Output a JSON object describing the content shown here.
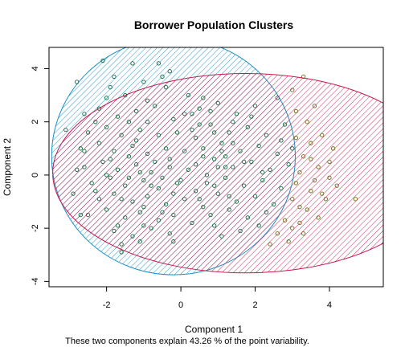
{
  "chart_data": {
    "type": "scatter",
    "title": "Borrower Population Clusters",
    "xlabel": "Component 1",
    "ylabel": "Component 2",
    "caption": "These two components explain 43.26 % of the point variability.",
    "xlim": [
      -3.55,
      5.45
    ],
    "ylim": [
      -4.2,
      4.8
    ],
    "x_ticks": [
      -2,
      0,
      2,
      4
    ],
    "y_ticks": [
      -4,
      -2,
      0,
      2,
      4
    ],
    "grid": false,
    "clusters": [
      {
        "ellipse": {
          "cx": -0.2,
          "cy": 0.7,
          "rx": 3.28,
          "ry": 4.45,
          "rotation_deg": 0
        },
        "fill_color": "#1a8fc8",
        "hatch_angle_deg": 45,
        "points": [
          [
            -2.8,
            3.5
          ],
          [
            -2.1,
            4.3
          ],
          [
            -1.3,
            4.2
          ],
          [
            -0.6,
            4.2
          ],
          [
            -1.8,
            3.7
          ],
          [
            -1.0,
            3.5
          ],
          [
            -0.4,
            3.3
          ],
          [
            -2.0,
            2.9
          ],
          [
            -1.5,
            3.0
          ],
          [
            -0.9,
            2.8
          ],
          [
            -2.6,
            2.3
          ],
          [
            -2.2,
            2.5
          ],
          [
            -1.7,
            2.2
          ],
          [
            -1.2,
            2.4
          ],
          [
            -0.7,
            2.6
          ],
          [
            -0.2,
            2.1
          ],
          [
            0.3,
            2.3
          ],
          [
            -3.1,
            1.7
          ],
          [
            -2.5,
            1.6
          ],
          [
            -2.0,
            1.8
          ],
          [
            -1.6,
            1.5
          ],
          [
            -1.1,
            1.7
          ],
          [
            -0.6,
            1.5
          ],
          [
            -0.1,
            1.6
          ],
          [
            0.4,
            1.4
          ],
          [
            0.9,
            1.6
          ],
          [
            -2.7,
            1.0
          ],
          [
            -2.2,
            1.2
          ],
          [
            -1.8,
            0.9
          ],
          [
            -1.3,
            1.1
          ],
          [
            -0.9,
            0.8
          ],
          [
            -0.4,
            1.0
          ],
          [
            0.1,
            0.9
          ],
          [
            0.6,
            0.7
          ],
          [
            1.1,
            0.9
          ],
          [
            -2.6,
            0.3
          ],
          [
            -2.1,
            0.5
          ],
          [
            -1.7,
            0.2
          ],
          [
            -1.2,
            0.4
          ],
          [
            -0.8,
            0.1
          ],
          [
            -0.3,
            0.3
          ],
          [
            0.2,
            0.2
          ],
          [
            0.7,
            0.0
          ],
          [
            1.2,
            0.3
          ],
          [
            -2.4,
            -0.3
          ],
          [
            -1.9,
            -0.1
          ],
          [
            -1.5,
            -0.4
          ],
          [
            -1.0,
            -0.2
          ],
          [
            -0.6,
            -0.5
          ],
          [
            -0.1,
            -0.3
          ],
          [
            0.4,
            -0.6
          ],
          [
            0.9,
            -0.4
          ],
          [
            -2.2,
            -0.9
          ],
          [
            -1.8,
            -0.7
          ],
          [
            -1.3,
            -1.0
          ],
          [
            -0.9,
            -0.8
          ],
          [
            -0.4,
            -1.1
          ],
          [
            0.1,
            -0.9
          ],
          [
            0.6,
            -1.2
          ],
          [
            -2.5,
            -1.5
          ],
          [
            -2.0,
            -1.3
          ],
          [
            -1.5,
            -1.6
          ],
          [
            -1.1,
            -1.4
          ],
          [
            -0.6,
            -1.7
          ],
          [
            -0.2,
            -1.5
          ],
          [
            0.3,
            -1.8
          ],
          [
            -1.8,
            -2.1
          ],
          [
            -1.3,
            -2.3
          ],
          [
            -0.8,
            -2.0
          ],
          [
            -0.3,
            -2.2
          ],
          [
            -1.6,
            -2.6
          ],
          [
            -1.1,
            -2.5
          ],
          [
            -1.6,
            -2.9
          ],
          [
            -2.7,
            -1.5
          ],
          [
            -2.9,
            -0.7
          ],
          [
            -2.8,
            0.2
          ],
          [
            0.5,
            1.9
          ],
          [
            0.8,
            2.4
          ],
          [
            0.2,
            3.0
          ],
          [
            -0.5,
            3.7
          ],
          [
            -1.4,
            0.7
          ],
          [
            -0.7,
            0.5
          ],
          [
            -1.9,
            0.6
          ],
          [
            -1.6,
            -0.9
          ],
          [
            -1.0,
            -1.2
          ],
          [
            -0.2,
            -0.7
          ],
          [
            -0.5,
            -0.1
          ],
          [
            -1.2,
            1.3
          ],
          [
            -2.3,
            -0.6
          ],
          [
            -2.0,
            0.0
          ],
          [
            -1.4,
            -0.1
          ],
          [
            -0.8,
            -0.4
          ],
          [
            -0.3,
            0.6
          ],
          [
            0.0,
            -0.2
          ],
          [
            -1.7,
            -1.9
          ],
          [
            -1.0,
            -1.9
          ],
          [
            -0.5,
            -1.4
          ],
          [
            1.4,
            1.2
          ],
          [
            1.7,
            0.5
          ],
          [
            -0.2,
            -2.5
          ],
          [
            -0.9,
            2.0
          ],
          [
            -1.4,
            2.0
          ],
          [
            -2.3,
            2.0
          ],
          [
            -1.9,
            3.3
          ],
          [
            -0.3,
            3.9
          ],
          [
            0.6,
            2.9
          ],
          [
            1.0,
            0.3
          ],
          [
            1.3,
            -0.8
          ],
          [
            -2.6,
            0.9
          ],
          [
            -1.1,
            0.1
          ]
        ]
      },
      {
        "ellipse": {
          "cx": 1.75,
          "cy": 0.07,
          "rx": 5.2,
          "ry": 3.75,
          "rotation_deg": 0
        },
        "fill_color": "#c8174b",
        "hatch_angle_deg": 45,
        "points": [
          [
            0.1,
            2.3
          ],
          [
            0.5,
            2.5
          ],
          [
            1.0,
            2.7
          ],
          [
            1.5,
            2.3
          ],
          [
            2.0,
            2.6
          ],
          [
            2.6,
            2.9
          ],
          [
            3.0,
            3.2
          ],
          [
            0.3,
            1.7
          ],
          [
            0.8,
            1.9
          ],
          [
            1.3,
            1.6
          ],
          [
            1.8,
            1.8
          ],
          [
            2.3,
            1.5
          ],
          [
            2.8,
            1.9
          ],
          [
            3.1,
            1.4
          ],
          [
            0.6,
            1.0
          ],
          [
            1.1,
            1.2
          ],
          [
            1.6,
            0.9
          ],
          [
            2.1,
            1.1
          ],
          [
            2.6,
            0.8
          ],
          [
            3.0,
            1.0
          ],
          [
            0.4,
            0.4
          ],
          [
            0.9,
            0.6
          ],
          [
            1.4,
            0.3
          ],
          [
            1.9,
            0.5
          ],
          [
            2.4,
            0.2
          ],
          [
            2.9,
            0.4
          ],
          [
            3.2,
            0.1
          ],
          [
            0.7,
            -0.3
          ],
          [
            1.2,
            -0.1
          ],
          [
            1.7,
            -0.4
          ],
          [
            2.2,
            -0.2
          ],
          [
            2.7,
            -0.5
          ],
          [
            3.1,
            -0.3
          ],
          [
            0.5,
            -0.9
          ],
          [
            1.0,
            -0.7
          ],
          [
            1.5,
            -1.0
          ],
          [
            2.0,
            -0.8
          ],
          [
            2.5,
            -1.1
          ],
          [
            3.0,
            -0.9
          ],
          [
            0.8,
            -1.5
          ],
          [
            1.3,
            -1.3
          ],
          [
            1.8,
            -1.6
          ],
          [
            2.3,
            -1.4
          ],
          [
            2.8,
            -1.7
          ],
          [
            1.6,
            -2.1
          ],
          [
            2.1,
            -1.9
          ],
          [
            2.6,
            -2.2
          ],
          [
            1.1,
            -2.3
          ],
          [
            2.9,
            -2.5
          ],
          [
            3.2,
            -1.8
          ],
          [
            3.3,
            3.7
          ],
          [
            3.6,
            2.6
          ],
          [
            3.4,
            2.0
          ],
          [
            3.8,
            1.5
          ],
          [
            4.1,
            1.0
          ],
          [
            3.7,
            0.3
          ],
          [
            4.0,
            -0.1
          ],
          [
            3.5,
            -0.6
          ],
          [
            3.9,
            -0.9
          ],
          [
            3.4,
            -1.3
          ],
          [
            3.7,
            -1.6
          ],
          [
            4.2,
            -0.4
          ],
          [
            4.7,
            -0.9
          ],
          [
            3.3,
            -2.2
          ],
          [
            3.6,
            -0.2
          ],
          [
            3.3,
            0.7
          ],
          [
            3.5,
            1.2
          ],
          [
            3.8,
            -0.7
          ],
          [
            3.1,
            2.4
          ],
          [
            4.0,
            0.5
          ],
          [
            3.2,
            -1.2
          ],
          [
            3.5,
            0.6
          ],
          [
            1.9,
            2.2
          ],
          [
            2.4,
            -2.6
          ],
          [
            1.4,
            2.0
          ],
          [
            2.2,
            0.1
          ],
          [
            2.7,
            1.3
          ],
          [
            1.2,
            0.7
          ],
          [
            0.9,
            -1.9
          ],
          [
            3.0,
            -2.0
          ]
        ]
      }
    ]
  }
}
